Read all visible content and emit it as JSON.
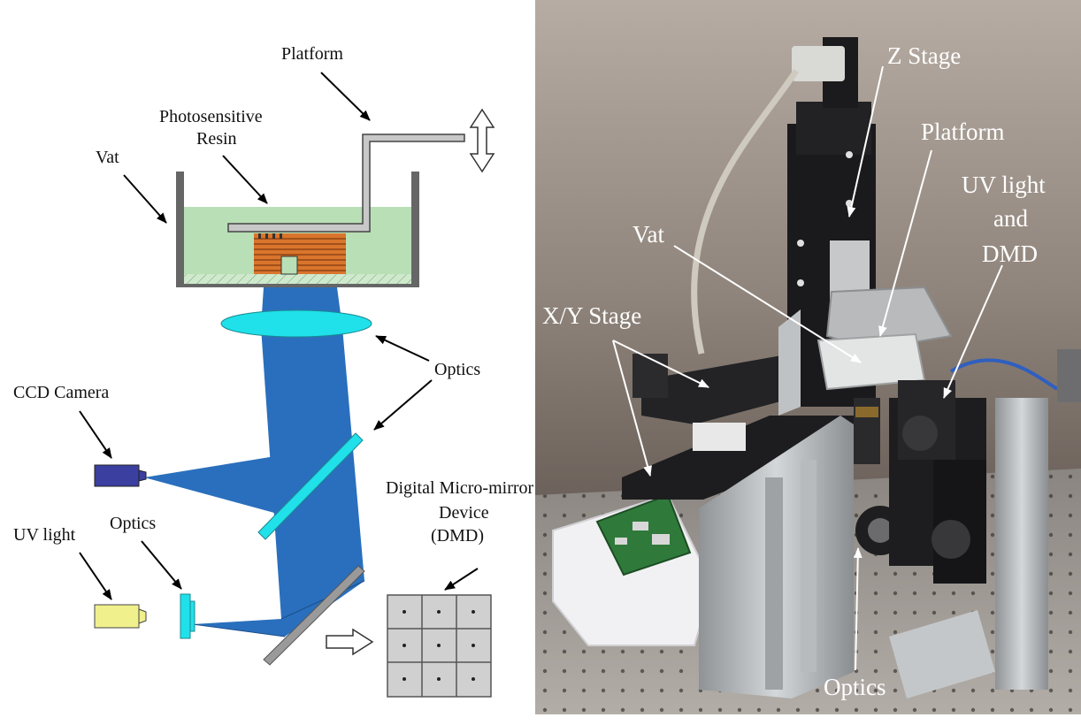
{
  "schematic": {
    "labels": {
      "platform": "Platform",
      "resin_line1": "Photosensitive",
      "resin_line2": "Resin",
      "vat": "Vat",
      "optics_top": "Optics",
      "ccd_camera": "CCD Camera",
      "uv_light": "UV light",
      "optics_bottom": "Optics",
      "dmd_line1": "Digital Micro-mirror",
      "dmd_line2": "Device",
      "dmd_line3": "(DMD)"
    },
    "colors": {
      "beam": "#2a6fbd",
      "resin": "#b9dfb6",
      "part": "#d9752c",
      "lens": "#20e0ea",
      "camera": "#3b3fa0",
      "uv_source": "#f0f08c",
      "mirror": "#9a9a9a",
      "vat_wall": "#666666"
    }
  },
  "photo": {
    "labels": {
      "z_stage": "Z Stage",
      "platform": "Platform",
      "uv_line1": "UV light",
      "uv_line2": "and",
      "uv_line3": "DMD",
      "vat": "Vat",
      "xy_stage": "X/Y Stage",
      "optics": "Optics"
    }
  }
}
